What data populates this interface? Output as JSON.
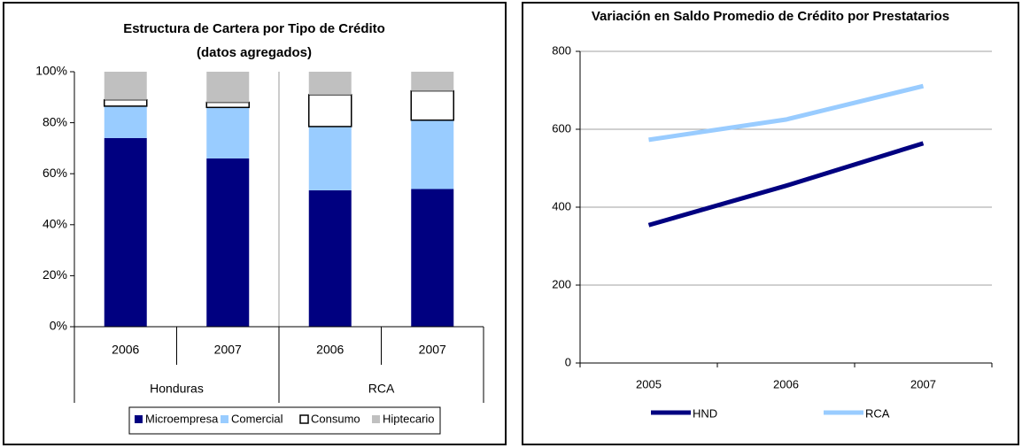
{
  "chart_data": [
    {
      "type": "stacked_bar",
      "title": "Estructura de Cartera por Tipo de Crédito",
      "subtitle": "(datos agregados)",
      "categories": [
        "2006",
        "2007",
        "2006",
        "2007"
      ],
      "groups": [
        "Honduras",
        "RCA"
      ],
      "series": [
        {
          "name": "Microempresa",
          "color": "#000080",
          "values": [
            74,
            66,
            53.5,
            54
          ]
        },
        {
          "name": "Comercial",
          "color": "#99ccff",
          "values": [
            12.5,
            20,
            25,
            27
          ]
        },
        {
          "name": "Consumo",
          "color": "#ffffff",
          "values": [
            2.5,
            2,
            12.5,
            11.5
          ]
        },
        {
          "name": "Hiptecario",
          "color": "#c0c0c0",
          "values": [
            11,
            12,
            9,
            7.5
          ]
        }
      ],
      "ylim": [
        0,
        100
      ],
      "yticks": [
        {
          "value": 0,
          "label": "0%"
        },
        {
          "value": 20,
          "label": "20%"
        },
        {
          "value": 40,
          "label": "40%"
        },
        {
          "value": 60,
          "label": "60%"
        },
        {
          "value": 80,
          "label": "80%"
        },
        {
          "value": 100,
          "label": "100%"
        }
      ],
      "legend": "bottom"
    },
    {
      "type": "line",
      "title": "Variación en Saldo Promedio de Crédito por Prestatarios",
      "categories": [
        "2005",
        "2006",
        "2007"
      ],
      "series": [
        {
          "name": "HND",
          "color": "#000080",
          "values": [
            354,
            455,
            564
          ]
        },
        {
          "name": "RCA",
          "color": "#99ccff",
          "values": [
            573,
            625,
            711
          ]
        }
      ],
      "ylim": [
        0,
        800
      ],
      "yticks": [
        0,
        200,
        400,
        600,
        800
      ],
      "grid": true,
      "legend": "bottom"
    }
  ]
}
